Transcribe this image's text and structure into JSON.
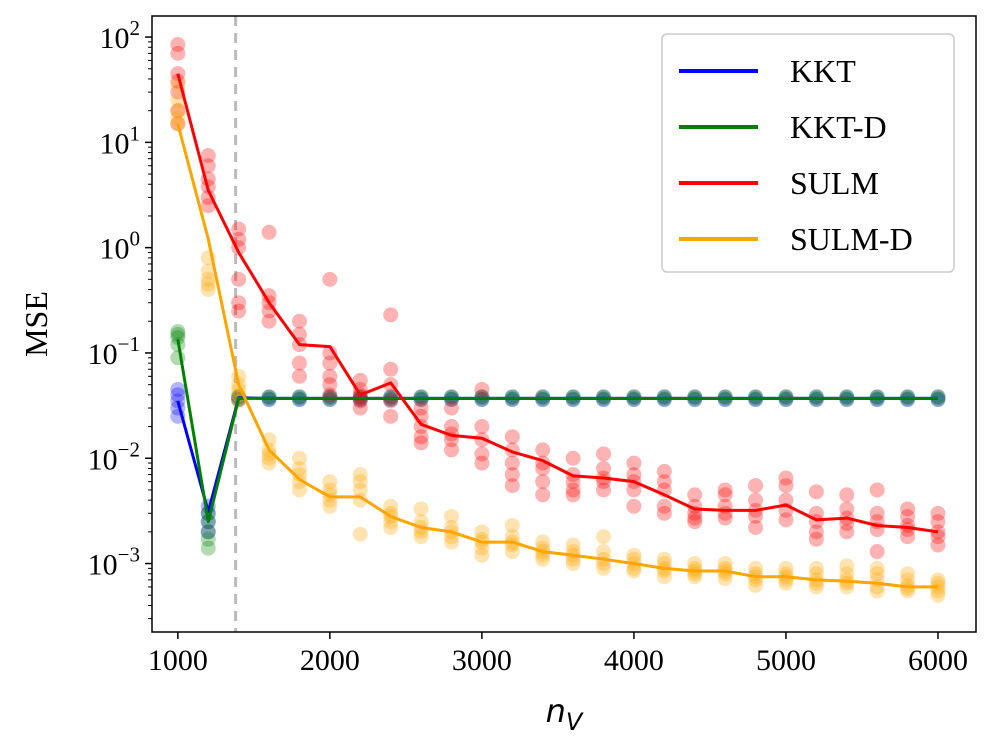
{
  "chart_data": {
    "type": "line",
    "xlabel": "n_V",
    "ylabel": "MSE",
    "xlim": [
      830,
      6250
    ],
    "ylim_log10": [
      -3.65,
      2.2
    ],
    "yscale": "log",
    "x_ticks": [
      1000,
      2000,
      3000,
      4000,
      5000,
      6000
    ],
    "y_ticks": [
      {
        "base": "10",
        "exp": "2",
        "value": 100
      },
      {
        "base": "10",
        "exp": "1",
        "value": 10
      },
      {
        "base": "10",
        "exp": "0",
        "value": 1
      },
      {
        "base": "10",
        "exp": "−1",
        "value": 0.1
      },
      {
        "base": "10",
        "exp": "−2",
        "value": 0.01
      },
      {
        "base": "10",
        "exp": "−3",
        "value": 0.001
      }
    ],
    "vline": {
      "x": 1380,
      "color": "#bbbbbb",
      "style": "dashed"
    },
    "legend": {
      "placement": "top-right"
    },
    "x": [
      1000,
      1200,
      1400,
      1600,
      1800,
      2000,
      2200,
      2400,
      2600,
      2800,
      3000,
      3200,
      3400,
      3600,
      3800,
      4000,
      4200,
      4400,
      4600,
      4800,
      5000,
      5200,
      5400,
      5600,
      5800,
      6000
    ],
    "series": [
      {
        "name": "KKT",
        "color": "#0000ff",
        "values": [
          0.035,
          0.0031,
          0.0375,
          0.037,
          0.037,
          0.037,
          0.037,
          0.037,
          0.037,
          0.037,
          0.037,
          0.037,
          0.037,
          0.037,
          0.037,
          0.037,
          0.037,
          0.037,
          0.037,
          0.037,
          0.037,
          0.037,
          0.037,
          0.037,
          0.037,
          0.037
        ],
        "scatter": [
          [
            0.045,
            0.04,
            0.035,
            0.03,
            0.025
          ],
          [
            0.0035,
            0.003,
            0.0025,
            0.002
          ],
          [
            0.038,
            0.036
          ],
          [
            0.038,
            0.036
          ],
          [
            0.038,
            0.036
          ],
          [
            0.038,
            0.036
          ],
          [
            0.038,
            0.036
          ],
          [
            0.038,
            0.036
          ],
          [
            0.038,
            0.036
          ],
          [
            0.038,
            0.036
          ],
          [
            0.038,
            0.036
          ],
          [
            0.038,
            0.036
          ],
          [
            0.038,
            0.036
          ],
          [
            0.038,
            0.036
          ],
          [
            0.038,
            0.036
          ],
          [
            0.038,
            0.036
          ],
          [
            0.038,
            0.036
          ],
          [
            0.038,
            0.036
          ],
          [
            0.038,
            0.036
          ],
          [
            0.038,
            0.036
          ],
          [
            0.038,
            0.036
          ],
          [
            0.038,
            0.036
          ],
          [
            0.038,
            0.036
          ],
          [
            0.038,
            0.036
          ],
          [
            0.038,
            0.036
          ],
          [
            0.038,
            0.036
          ]
        ],
        "scatter_alpha": 0.3
      },
      {
        "name": "KKT-D",
        "color": "#008000",
        "values": [
          0.135,
          0.0025,
          0.037,
          0.037,
          0.037,
          0.037,
          0.037,
          0.037,
          0.037,
          0.037,
          0.037,
          0.037,
          0.037,
          0.037,
          0.037,
          0.037,
          0.037,
          0.037,
          0.037,
          0.037,
          0.037,
          0.037,
          0.037,
          0.037,
          0.037,
          0.037
        ],
        "scatter": [
          [
            0.16,
            0.15,
            0.14,
            0.12,
            0.09
          ],
          [
            0.003,
            0.0025,
            0.002,
            0.0017,
            0.0014
          ],
          [
            0.0385,
            0.0365
          ],
          [
            0.0385,
            0.0365
          ],
          [
            0.0385,
            0.0365
          ],
          [
            0.0385,
            0.0365
          ],
          [
            0.0385,
            0.0365
          ],
          [
            0.0385,
            0.0365
          ],
          [
            0.0385,
            0.0365
          ],
          [
            0.0385,
            0.0365
          ],
          [
            0.0385,
            0.0365
          ],
          [
            0.0385,
            0.0365
          ],
          [
            0.0385,
            0.0365
          ],
          [
            0.0385,
            0.0365
          ],
          [
            0.0385,
            0.0365
          ],
          [
            0.0385,
            0.0365
          ],
          [
            0.0385,
            0.0365
          ],
          [
            0.0385,
            0.0365
          ],
          [
            0.0385,
            0.0365
          ],
          [
            0.0385,
            0.0365
          ],
          [
            0.0385,
            0.0365
          ],
          [
            0.0385,
            0.0365
          ],
          [
            0.0385,
            0.0365
          ],
          [
            0.0385,
            0.0365
          ],
          [
            0.0385,
            0.0365
          ],
          [
            0.0385,
            0.0365
          ]
        ],
        "scatter_alpha": 0.3
      },
      {
        "name": "SULM",
        "color": "#ff0000",
        "values": [
          45,
          3.5,
          0.9,
          0.3,
          0.12,
          0.115,
          0.04,
          0.052,
          0.021,
          0.0165,
          0.0155,
          0.0115,
          0.0095,
          0.0068,
          0.0065,
          0.006,
          0.0045,
          0.0033,
          0.0032,
          0.0032,
          0.0036,
          0.0026,
          0.0027,
          0.0023,
          0.0022,
          0.002
        ],
        "scatter": [
          [
            85,
            70,
            45,
            38,
            30,
            20,
            15
          ],
          [
            7.5,
            6,
            4.5,
            3.8,
            3,
            2.5
          ],
          [
            1.5,
            1.2,
            1,
            0.5,
            0.3,
            0.25
          ],
          [
            1.4,
            0.35,
            0.3,
            0.25,
            0.2
          ],
          [
            0.2,
            0.15,
            0.12,
            0.08,
            0.06
          ],
          [
            0.5,
            0.1,
            0.08,
            0.06,
            0.05,
            0.04
          ],
          [
            0.055,
            0.045,
            0.04,
            0.035,
            0.03
          ],
          [
            0.23,
            0.07,
            0.05,
            0.035,
            0.025
          ],
          [
            0.03,
            0.025,
            0.02,
            0.016,
            0.014
          ],
          [
            0.03,
            0.02,
            0.017,
            0.015,
            0.012
          ],
          [
            0.045,
            0.02,
            0.015,
            0.011,
            0.009
          ],
          [
            0.016,
            0.012,
            0.009,
            0.007,
            0.0055
          ],
          [
            0.012,
            0.009,
            0.008,
            0.006,
            0.0045
          ],
          [
            0.01,
            0.007,
            0.006,
            0.005,
            0.0045
          ],
          [
            0.011,
            0.008,
            0.0065,
            0.006,
            0.005
          ],
          [
            0.009,
            0.007,
            0.006,
            0.005,
            0.0035
          ],
          [
            0.0075,
            0.006,
            0.005,
            0.0035,
            0.003
          ],
          [
            0.0045,
            0.0035,
            0.003,
            0.0027,
            0.0025
          ],
          [
            0.005,
            0.0045,
            0.0035,
            0.003,
            0.0027
          ],
          [
            0.0055,
            0.004,
            0.0032,
            0.0028,
            0.0022
          ],
          [
            0.0065,
            0.0055,
            0.004,
            0.0032,
            0.0026
          ],
          [
            0.0048,
            0.003,
            0.0025,
            0.002,
            0.0017
          ],
          [
            0.0045,
            0.0033,
            0.0027,
            0.0024,
            0.002
          ],
          [
            0.005,
            0.003,
            0.0025,
            0.0021,
            0.0013
          ],
          [
            0.0033,
            0.0028,
            0.0023,
            0.0021,
            0.0018
          ],
          [
            0.003,
            0.0025,
            0.002,
            0.0018,
            0.0015
          ]
        ],
        "scatter_alpha": 0.3
      },
      {
        "name": "SULM-D",
        "color": "#ffa500",
        "values": [
          15,
          1.2,
          0.05,
          0.012,
          0.0063,
          0.0043,
          0.0043,
          0.0028,
          0.0022,
          0.002,
          0.0016,
          0.0016,
          0.0013,
          0.0012,
          0.0011,
          0.001,
          0.0009,
          0.00085,
          0.00085,
          0.00075,
          0.00075,
          0.0007,
          0.00068,
          0.00065,
          0.0006,
          0.0006
        ],
        "scatter": [
          [
            35,
            25,
            20,
            17,
            15
          ],
          [
            0.8,
            0.6,
            0.5,
            0.45,
            0.4
          ],
          [
            0.06,
            0.05,
            0.045,
            0.04,
            0.035
          ],
          [
            0.015,
            0.012,
            0.011,
            0.01,
            0.009
          ],
          [
            0.01,
            0.008,
            0.007,
            0.006,
            0.005
          ],
          [
            0.006,
            0.005,
            0.0045,
            0.004,
            0.0035
          ],
          [
            0.007,
            0.006,
            0.005,
            0.004,
            0.0019
          ],
          [
            0.0035,
            0.003,
            0.0028,
            0.0025,
            0.0022
          ],
          [
            0.0033,
            0.0025,
            0.0022,
            0.002,
            0.0018
          ],
          [
            0.0028,
            0.0022,
            0.002,
            0.0018,
            0.0016
          ],
          [
            0.002,
            0.0017,
            0.0016,
            0.0014,
            0.0012
          ],
          [
            0.0023,
            0.0018,
            0.0016,
            0.0015,
            0.0013
          ],
          [
            0.0016,
            0.0014,
            0.0013,
            0.0012,
            0.0011
          ],
          [
            0.0015,
            0.0013,
            0.0012,
            0.0011,
            0.001
          ],
          [
            0.0018,
            0.0013,
            0.0011,
            0.001,
            0.0009
          ],
          [
            0.0012,
            0.0011,
            0.001,
            0.0009,
            0.00085
          ],
          [
            0.0011,
            0.001,
            0.0009,
            0.00085,
            0.00075
          ],
          [
            0.001,
            0.0009,
            0.00085,
            0.0008,
            0.00075
          ],
          [
            0.001,
            0.0009,
            0.00085,
            0.0008,
            0.00072
          ],
          [
            0.0009,
            0.0008,
            0.00075,
            0.0007,
            0.00062
          ],
          [
            0.0009,
            0.0008,
            0.00075,
            0.0007,
            0.00065
          ],
          [
            0.0009,
            0.0008,
            0.0007,
            0.00065,
            0.0006
          ],
          [
            0.00095,
            0.0008,
            0.0007,
            0.00065,
            0.0006
          ],
          [
            0.0009,
            0.0008,
            0.0007,
            0.0006,
            0.00055
          ],
          [
            0.0008,
            0.0007,
            0.00062,
            0.00058,
            0.00055
          ],
          [
            0.0007,
            0.00065,
            0.0006,
            0.00055,
            0.0005
          ]
        ],
        "scatter_alpha": 0.3
      }
    ]
  }
}
